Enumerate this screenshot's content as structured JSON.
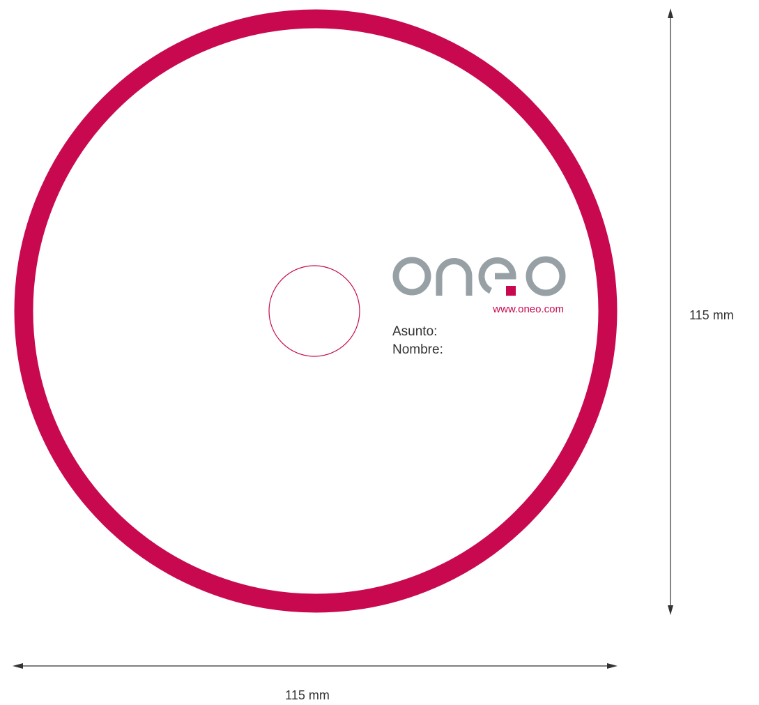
{
  "colors": {
    "brand": "#c8094f",
    "logo_grey": "#97a0a5",
    "dimension_line": "#333333",
    "text": "#333333"
  },
  "logo": {
    "wordmark": "oneo",
    "url": "www.oneo.com"
  },
  "fields": {
    "subject_label": "Asunto:",
    "name_label": "Nombre:"
  },
  "dimensions": {
    "height_label": "115 mm",
    "width_label": "115 mm"
  }
}
